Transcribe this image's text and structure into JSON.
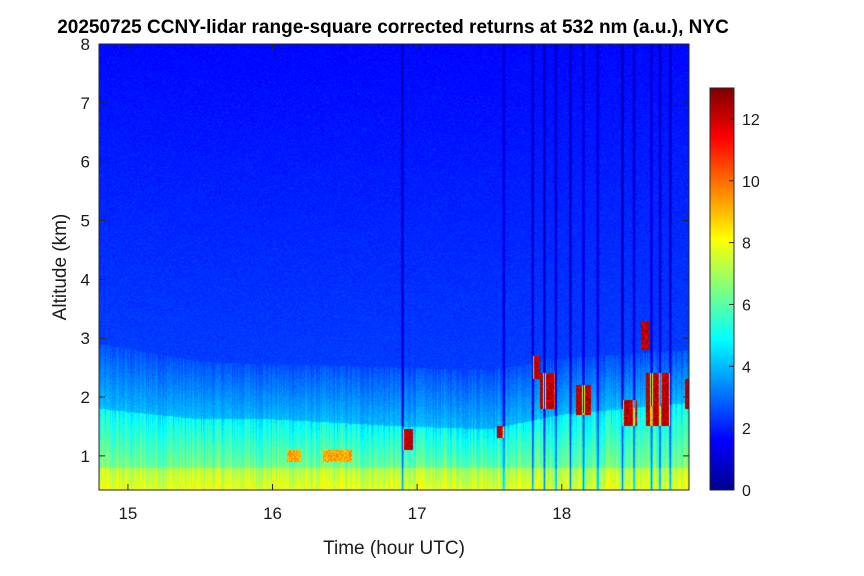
{
  "chart_data": {
    "type": "heatmap",
    "title": "20250725 CCNY-lidar range-square corrected returns at 532 nm (a.u.), NYC",
    "xlabel": "Time (hour UTC)",
    "ylabel": "Altitude (km)",
    "xlim": [
      14.8,
      18.88
    ],
    "ylim": [
      0.42,
      8
    ],
    "xticks": [
      15,
      16,
      17,
      18
    ],
    "yticks": [
      1,
      2,
      3,
      4,
      5,
      6,
      7,
      8
    ],
    "colorbar": {
      "clim": [
        0,
        13
      ],
      "ticks": [
        0,
        2,
        4,
        6,
        8,
        10,
        12
      ],
      "colormap": "jet",
      "location": "right"
    },
    "grid": false,
    "features": {
      "surface_layer_top_km": [
        [
          14.8,
          1.8
        ],
        [
          15.5,
          1.62
        ],
        [
          16.0,
          1.62
        ],
        [
          16.9,
          1.5
        ],
        [
          17.5,
          1.45
        ],
        [
          18.0,
          1.7
        ],
        [
          18.88,
          1.9
        ]
      ],
      "aerosol_residual_top_km": [
        [
          14.8,
          2.9
        ],
        [
          15.5,
          2.6
        ],
        [
          16.0,
          2.55
        ],
        [
          16.9,
          2.5
        ],
        [
          17.5,
          2.45
        ],
        [
          18.0,
          2.65
        ],
        [
          18.88,
          2.8
        ]
      ],
      "high_return_patches": [
        {
          "t": [
            16.1,
            16.2
          ],
          "z": [
            0.9,
            1.1
          ],
          "value": 10
        },
        {
          "t": [
            16.35,
            16.55
          ],
          "z": [
            0.9,
            1.1
          ],
          "value": 10
        },
        {
          "t": [
            16.9,
            16.97
          ],
          "z": [
            1.1,
            1.45
          ],
          "value": 13
        },
        {
          "t": [
            17.55,
            17.6
          ],
          "z": [
            1.3,
            1.5
          ],
          "value": 13
        },
        {
          "t": [
            17.8,
            17.85
          ],
          "z": [
            2.3,
            2.7
          ],
          "value": 13
        },
        {
          "t": [
            17.85,
            17.95
          ],
          "z": [
            1.8,
            2.4
          ],
          "value": 13
        },
        {
          "t": [
            18.1,
            18.2
          ],
          "z": [
            1.7,
            2.2
          ],
          "value": 13
        },
        {
          "t": [
            18.42,
            18.52
          ],
          "z": [
            1.5,
            1.95
          ],
          "value": 13
        },
        {
          "t": [
            18.55,
            18.6
          ],
          "z": [
            2.8,
            3.3
          ],
          "value": 13
        },
        {
          "t": [
            18.58,
            18.75
          ],
          "z": [
            1.5,
            2.4
          ],
          "value": 13
        },
        {
          "t": [
            18.85,
            18.88
          ],
          "z": [
            1.8,
            2.3
          ],
          "value": 13
        }
      ],
      "signal_dropouts_hour": [
        16.9,
        17.6,
        17.8,
        17.88,
        17.96,
        18.06,
        18.15,
        18.25,
        18.42,
        18.5,
        18.62,
        18.68,
        18.75
      ]
    }
  }
}
